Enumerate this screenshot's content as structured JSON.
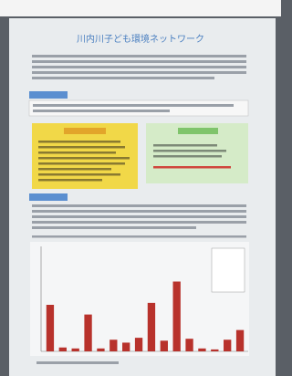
{
  "title": "川内川子ども環境ネットワーク",
  "chart_data": {
    "type": "bar",
    "categories": [
      null,
      null,
      null,
      null,
      null,
      null,
      null,
      null,
      null,
      null,
      null,
      null,
      null,
      null,
      null,
      null
    ],
    "series": [
      {
        "color": "#b8322c",
        "values": [
          48,
          4,
          3,
          38,
          3,
          12,
          9,
          14,
          50,
          11,
          72,
          13,
          3,
          2,
          12,
          22
        ]
      }
    ],
    "ylim": [
      0,
      80
    ]
  }
}
